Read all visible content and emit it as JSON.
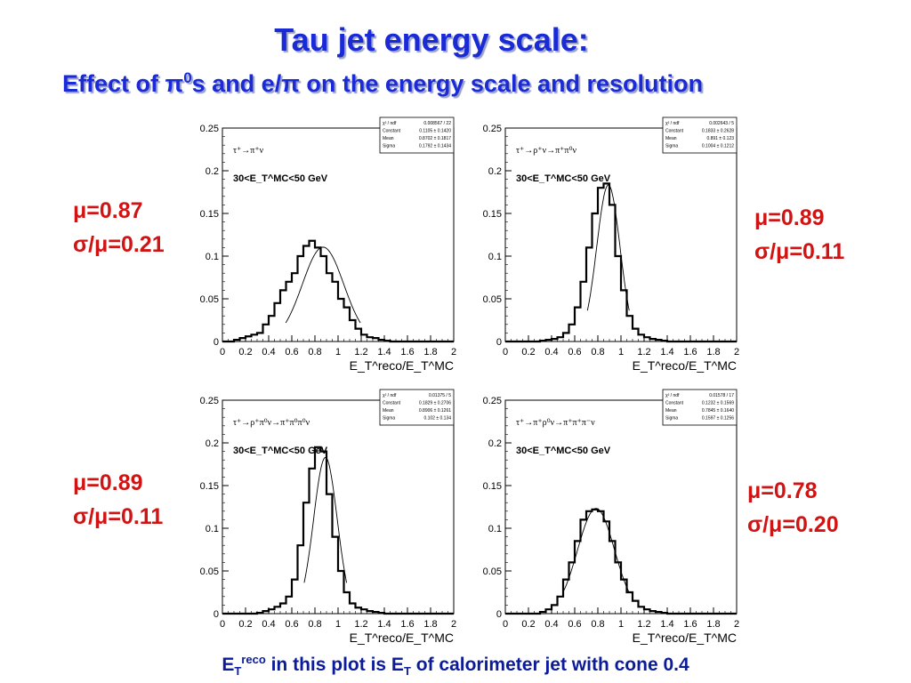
{
  "title": "Tau jet energy scale:",
  "subtitle": {
    "prefix": "Effect of ",
    "pi": "π",
    "zero": "0",
    "suffix": "s and e/π on the energy scale and resolution"
  },
  "footer": {
    "e": "E",
    "t": "T",
    "reco": "reco",
    "mid": " in this plot is E",
    "t2": "T",
    "end": " of calorimeter jet with cone 0.4"
  },
  "stats": [
    {
      "mu": "μ=0.87",
      "sigma": "σ/μ=0.21"
    },
    {
      "mu": "μ=0.89",
      "sigma": "σ/μ=0.11"
    },
    {
      "mu": "μ=0.89",
      "sigma": "σ/μ=0.11"
    },
    {
      "mu": "μ=0.78",
      "sigma": "σ/μ=0.20"
    }
  ],
  "chart_data": [
    {
      "type": "bar",
      "process": "τ⁺→π⁺ν",
      "cut": "30<E_T^MC<50 GeV",
      "xlabel": "E_T^reco/E_T^MC",
      "xlim": [
        0,
        2
      ],
      "ylim": [
        0,
        0.25
      ],
      "xticks": [
        "0",
        "0.2",
        "0.4",
        "0.6",
        "0.8",
        "1",
        "1.2",
        "1.4",
        "1.6",
        "1.8",
        "2"
      ],
      "yticks": [
        "0",
        "0.05",
        "0.1",
        "0.15",
        "0.2",
        "0.25"
      ],
      "bin_width": 0.05,
      "values": [
        0,
        0,
        0.002,
        0.004,
        0.006,
        0.008,
        0.01,
        0.02,
        0.03,
        0.045,
        0.06,
        0.07,
        0.08,
        0.1,
        0.112,
        0.118,
        0.11,
        0.1,
        0.08,
        0.07,
        0.05,
        0.04,
        0.025,
        0.015,
        0.008,
        0.005,
        0.004,
        0.002,
        0.001,
        0,
        0,
        0,
        0,
        0,
        0,
        0,
        0,
        0,
        0,
        0
      ],
      "fit": {
        "constant": 0.1105,
        "mean": 0.8702,
        "sigma": 0.1792
      },
      "stats_box": {
        "chi2": "0.008567 / 22",
        "constant": "0.1105 ± 0.1420",
        "mean": "0.8702 ± 0.1817",
        "sigma": "0.1792 ± 0.1434"
      }
    },
    {
      "type": "bar",
      "process": "τ⁺→ρ⁺ν→π⁺π⁰ν",
      "cut": "30<E_T^MC<50 GeV",
      "xlabel": "E_T^reco/E_T^MC",
      "xlim": [
        0,
        2
      ],
      "ylim": [
        0,
        0.25
      ],
      "xticks": [
        "0",
        "0.2",
        "0.4",
        "0.6",
        "0.8",
        "1",
        "1.2",
        "1.4",
        "1.6",
        "1.8",
        "2"
      ],
      "yticks": [
        "0",
        "0.05",
        "0.1",
        "0.15",
        "0.2",
        "0.25"
      ],
      "bin_width": 0.05,
      "values": [
        0,
        0,
        0,
        0,
        0,
        0,
        0.001,
        0.002,
        0.003,
        0.005,
        0.01,
        0.02,
        0.04,
        0.07,
        0.11,
        0.15,
        0.18,
        0.185,
        0.16,
        0.1,
        0.06,
        0.03,
        0.015,
        0.008,
        0.005,
        0.003,
        0.002,
        0.001,
        0,
        0,
        0,
        0,
        0,
        0,
        0,
        0,
        0,
        0,
        0,
        0
      ],
      "fit": {
        "constant": 0.1833,
        "mean": 0.891,
        "sigma": 0.1004
      },
      "stats_box": {
        "chi2": "0.002643 / 5",
        "constant": "0.1833 ± 0.2628",
        "mean": "0.891 ± 0.123",
        "sigma": "0.1004 ± 0.1212"
      }
    },
    {
      "type": "bar",
      "process": "τ⁺→ρ⁺π⁰ν→π⁺π⁰π⁰ν",
      "cut": "30<E_T^MC<50 GeV",
      "xlabel": "E_T^reco/E_T^MC",
      "xlim": [
        0,
        2
      ],
      "ylim": [
        0,
        0.25
      ],
      "xticks": [
        "0",
        "0.2",
        "0.4",
        "0.6",
        "0.8",
        "1",
        "1.2",
        "1.4",
        "1.6",
        "1.8",
        "2"
      ],
      "yticks": [
        "0",
        "0.05",
        "0.1",
        "0.15",
        "0.2",
        "0.25"
      ],
      "bin_width": 0.05,
      "values": [
        0,
        0,
        0,
        0,
        0,
        0,
        0.001,
        0.003,
        0.005,
        0.008,
        0.012,
        0.02,
        0.04,
        0.08,
        0.13,
        0.17,
        0.195,
        0.19,
        0.14,
        0.09,
        0.05,
        0.025,
        0.012,
        0.007,
        0.005,
        0.003,
        0.002,
        0.001,
        0,
        0,
        0,
        0,
        0,
        0,
        0,
        0,
        0,
        0,
        0,
        0
      ],
      "fit": {
        "constant": 0.1829,
        "mean": 0.8906,
        "sigma": 0.102
      },
      "stats_box": {
        "chi2": "0.01375 / 5",
        "constant": "0.1829 ± 0.2706",
        "mean": "0.8906 ± 0.1261",
        "sigma": "0.102 ± 0.134"
      }
    },
    {
      "type": "bar",
      "process": "τ⁺→π⁺ρ⁰ν→π⁺π⁺π⁻ν",
      "cut": "30<E_T^MC<50 GeV",
      "xlabel": "E_T^reco/E_T^MC",
      "xlim": [
        0,
        2
      ],
      "ylim": [
        0,
        0.25
      ],
      "xticks": [
        "0",
        "0.2",
        "0.4",
        "0.6",
        "0.8",
        "1",
        "1.2",
        "1.4",
        "1.6",
        "1.8",
        "2"
      ],
      "yticks": [
        "0",
        "0.05",
        "0.1",
        "0.15",
        "0.2",
        "0.25"
      ],
      "bin_width": 0.05,
      "values": [
        0,
        0,
        0,
        0,
        0,
        0,
        0.002,
        0.005,
        0.01,
        0.02,
        0.04,
        0.06,
        0.085,
        0.11,
        0.12,
        0.122,
        0.12,
        0.108,
        0.085,
        0.06,
        0.04,
        0.025,
        0.015,
        0.008,
        0.005,
        0.003,
        0.002,
        0.001,
        0,
        0,
        0,
        0,
        0,
        0,
        0,
        0,
        0,
        0,
        0,
        0
      ],
      "fit": {
        "constant": 0.1232,
        "mean": 0.7845,
        "sigma": 0.1597
      },
      "stats_box": {
        "chi2": "0.01578 / 17",
        "constant": "0.1232 ± 0.1569",
        "mean": "0.7845 ± 0.1640",
        "sigma": "0.1597 ± 0.1256"
      }
    }
  ]
}
